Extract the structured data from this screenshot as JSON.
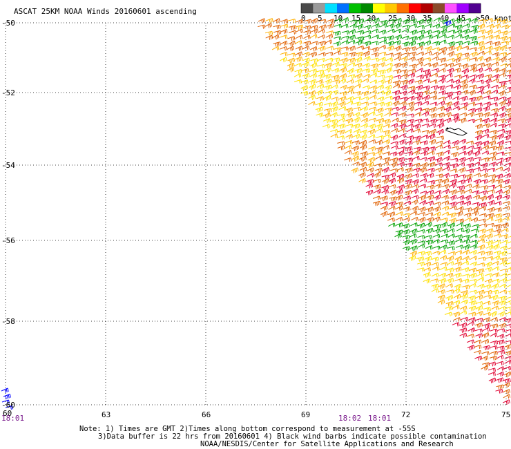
{
  "title": "ASCAT 25KM NOAA Winds 20160601 ascending",
  "legend": {
    "units": ">50 knots",
    "ticks": [
      "0",
      "5",
      "10",
      "15",
      "20",
      "25",
      "30",
      "35",
      "40",
      "45"
    ],
    "colors": [
      "#4a4a4a",
      "#9a9a9a",
      "#00e0ff",
      "#0070ff",
      "#00c000",
      "#008800",
      "#ffff00",
      "#ffc800",
      "#ff7000",
      "#ff0000",
      "#b00000",
      "#8b4a2a",
      "#ff50ff",
      "#a000ff",
      "#500090"
    ]
  },
  "axes": {
    "lat_labels": [
      "-50",
      "-52",
      "-54",
      "-56",
      "-58",
      "-60"
    ],
    "lon_labels": [
      "60",
      "63",
      "66",
      "69",
      "72",
      "75"
    ]
  },
  "times": [
    "18:01",
    "18:02",
    "18:01"
  ],
  "notes": [
    "Note: 1) Times are GMT 2)Times along bottom correspond to measurement at -55S",
    "3)Data buffer is 22 hrs from 20160601 4) Black wind barbs indicate possible contamination",
    "NOAA/NESDIS/Center for Satellite Applications and Research"
  ],
  "wind_colors": {
    "green": "#00a000",
    "yellow": "#ffe000",
    "gold": "#ffb000",
    "orange": "#e06000",
    "red": "#e00030",
    "blue": "#0000ff"
  }
}
